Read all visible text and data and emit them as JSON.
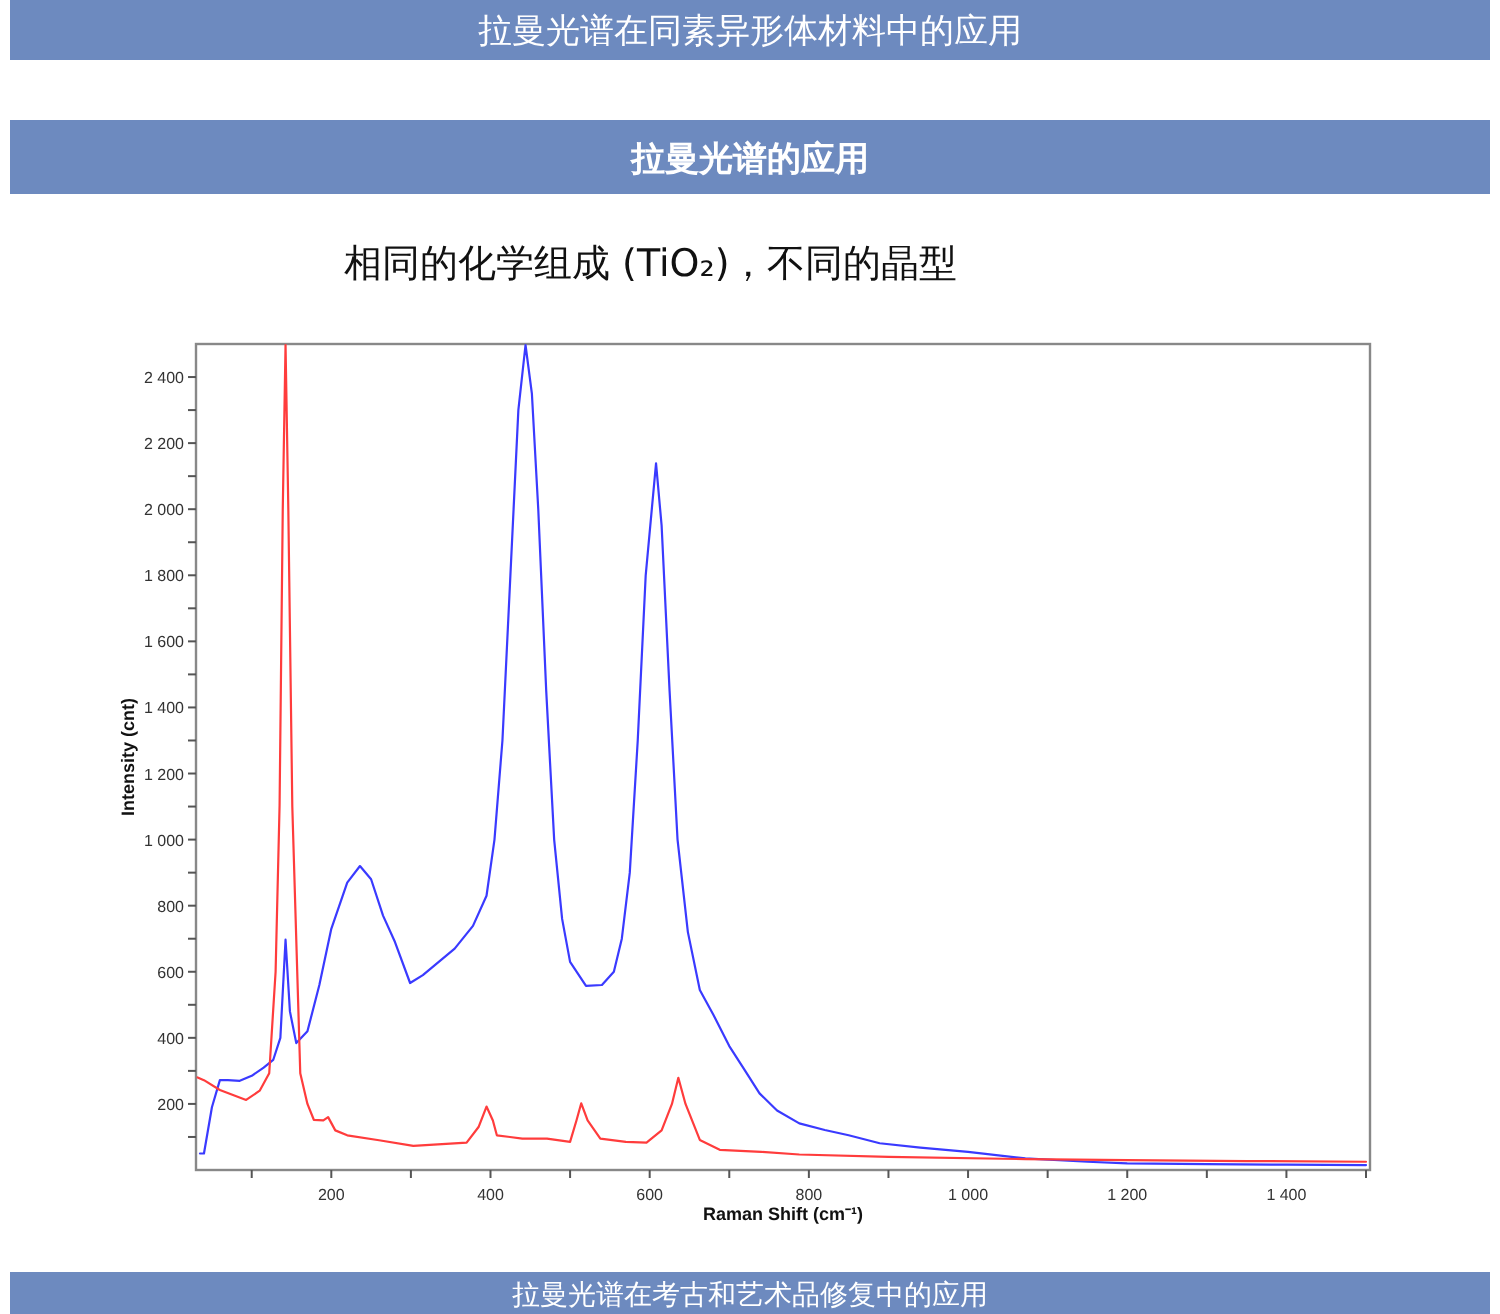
{
  "chart_data": {
    "type": "line",
    "title": "拉曼光谱的应用",
    "subtitle": "相同的化学组成 (TiO₂)，不同的晶型",
    "annotations": [
      "拉曼光谱在同素异形体材料中的应用",
      "拉曼光谱在考古和艺术品修复中的应用"
    ],
    "xlabel": "Raman Shift (cm⁻¹)",
    "ylabel": "Intensity (cnt)",
    "xlim": [
      30,
      1505
    ],
    "ylim": [
      0,
      2500
    ],
    "xticks": [
      {
        "value": 100,
        "label": null
      },
      200,
      {
        "value": 300,
        "label": null
      },
      400,
      {
        "value": 500,
        "label": null
      },
      600,
      {
        "value": 700,
        "label": null
      },
      800,
      {
        "value": 900,
        "label": null
      },
      {
        "value": 1000,
        "label": "1 000"
      },
      {
        "value": 1100,
        "label": null
      },
      {
        "value": 1200,
        "label": "1 200"
      },
      {
        "value": 1300,
        "label": null
      },
      {
        "value": 1400,
        "label": "1 400"
      },
      {
        "value": 1500,
        "label": null
      }
    ],
    "yticks": [
      {
        "value": 100,
        "label": null
      },
      200,
      {
        "value": 300,
        "label": null
      },
      400,
      {
        "value": 500,
        "label": null
      },
      600,
      {
        "value": 700,
        "label": null
      },
      800,
      {
        "value": 900,
        "label": null
      },
      {
        "value": 1000,
        "label": "1 000"
      },
      {
        "value": 1100,
        "label": null
      },
      {
        "value": 1200,
        "label": "1 200"
      },
      {
        "value": 1300,
        "label": null
      },
      {
        "value": 1400,
        "label": "1 400"
      },
      {
        "value": 1500,
        "label": null
      },
      {
        "value": 1600,
        "label": "1 600"
      },
      {
        "value": 1700,
        "label": null
      },
      {
        "value": 1800,
        "label": "1 800"
      },
      {
        "value": 1900,
        "label": null
      },
      {
        "value": 2000,
        "label": "2 000"
      },
      {
        "value": 2100,
        "label": null
      },
      {
        "value": 2200,
        "label": "2 200"
      },
      {
        "value": 2300,
        "label": null
      },
      {
        "value": 2400,
        "label": "2 400"
      }
    ],
    "grid": false,
    "marker": "none",
    "line_style": "solid",
    "series": [
      {
        "color": "#3a3aff",
        "x": [
          35,
          40,
          50,
          60,
          70,
          85,
          100,
          115,
          127,
          136,
          142.5,
          148,
          156,
          170,
          185,
          200,
          220,
          236,
          250,
          265,
          280,
          299,
          315,
          335,
          355,
          378,
          395,
          405,
          415,
          425,
          435,
          444,
          452,
          460,
          470,
          480,
          490,
          500,
          520,
          540,
          555,
          565,
          575,
          585,
          595,
          608,
          615,
          625,
          635,
          648,
          663,
          680,
          700,
          720,
          738,
          760,
          788,
          820,
          850,
          889,
          940,
          1000,
          1072,
          1150,
          1200,
          1300,
          1400,
          1500
        ],
        "values": [
          50,
          50,
          190,
          272,
          272,
          270,
          285,
          310,
          333,
          400,
          697,
          480,
          384,
          420,
          560,
          730,
          870,
          920,
          880,
          770,
          690,
          566,
          590,
          630,
          670,
          739,
          830,
          1000,
          1300,
          1800,
          2300,
          2497,
          2350,
          2000,
          1450,
          1000,
          760,
          630,
          557,
          560,
          600,
          700,
          900,
          1300,
          1800,
          2139,
          1950,
          1450,
          1000,
          720,
          545,
          470,
          375,
          300,
          232,
          180,
          141,
          121,
          105,
          81,
          68,
          55,
          35,
          25,
          20,
          18,
          16,
          15
        ]
      },
      {
        "color": "#ff3c3c",
        "x": [
          32,
          40,
          60,
          93,
          110,
          122,
          130,
          135,
          139,
          142.5,
          146,
          151,
          161,
          170,
          178,
          190,
          196,
          205,
          220,
          260,
          303,
          370,
          385,
          395,
          403,
          408,
          440,
          471,
          500,
          508,
          514,
          522,
          538,
          570,
          596,
          615,
          628,
          636,
          645,
          663,
          688,
          740,
          788,
          900,
          1072,
          1200,
          1350,
          1500
        ],
        "values": [
          280,
          272,
          242,
          212,
          240,
          293,
          600,
          1103,
          2000,
          2497,
          2000,
          1100,
          293,
          200,
          152,
          150,
          160,
          120,
          105,
          90,
          73,
          83,
          130,
          192,
          150,
          105,
          95,
          95,
          85,
          150,
          202,
          150,
          95,
          85,
          83,
          120,
          200,
          279,
          200,
          91,
          61,
          55,
          47,
          40,
          33,
          30,
          27,
          25
        ]
      }
    ]
  }
}
